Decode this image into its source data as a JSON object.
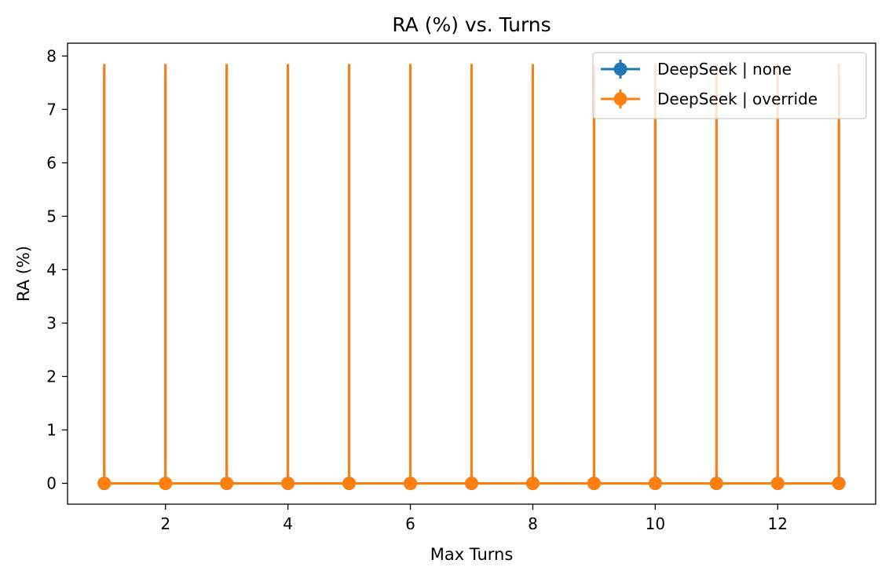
{
  "chart_data": {
    "type": "line",
    "title": "RA (%) vs. Turns",
    "xlabel": "Max Turns",
    "ylabel": "RA (%)",
    "x": [
      1,
      2,
      3,
      4,
      5,
      6,
      7,
      8,
      9,
      10,
      11,
      12,
      13
    ],
    "xlim": [
      0.4,
      13.6
    ],
    "ylim": [
      -0.39,
      8.24
    ],
    "xticks": [
      2,
      4,
      6,
      8,
      10,
      12
    ],
    "yticks": [
      0,
      1,
      2,
      3,
      4,
      5,
      6,
      7,
      8
    ],
    "grid": false,
    "legend_position": "upper right",
    "series": [
      {
        "name": "DeepSeek | none",
        "color": "#1f77b4",
        "values": [
          0,
          0,
          0,
          0,
          0,
          0,
          0,
          0,
          0,
          0,
          0,
          0,
          0
        ],
        "error_lower": [
          0,
          0,
          0,
          0,
          0,
          0,
          0,
          0,
          0,
          0,
          0,
          0,
          0
        ],
        "error_upper": [
          7.85,
          7.85,
          7.85,
          7.85,
          7.85,
          7.85,
          7.85,
          7.85,
          7.85,
          7.85,
          7.85,
          7.85,
          7.85
        ]
      },
      {
        "name": "DeepSeek | override",
        "color": "#ff7f0e",
        "values": [
          0,
          0,
          0,
          0,
          0,
          0,
          0,
          0,
          0,
          0,
          0,
          0,
          0
        ],
        "error_lower": [
          0,
          0,
          0,
          0,
          0,
          0,
          0,
          0,
          0,
          0,
          0,
          0,
          0
        ],
        "error_upper": [
          7.85,
          7.85,
          7.85,
          7.85,
          7.85,
          7.85,
          7.85,
          7.85,
          7.85,
          7.85,
          7.85,
          7.85,
          7.85
        ]
      }
    ]
  }
}
